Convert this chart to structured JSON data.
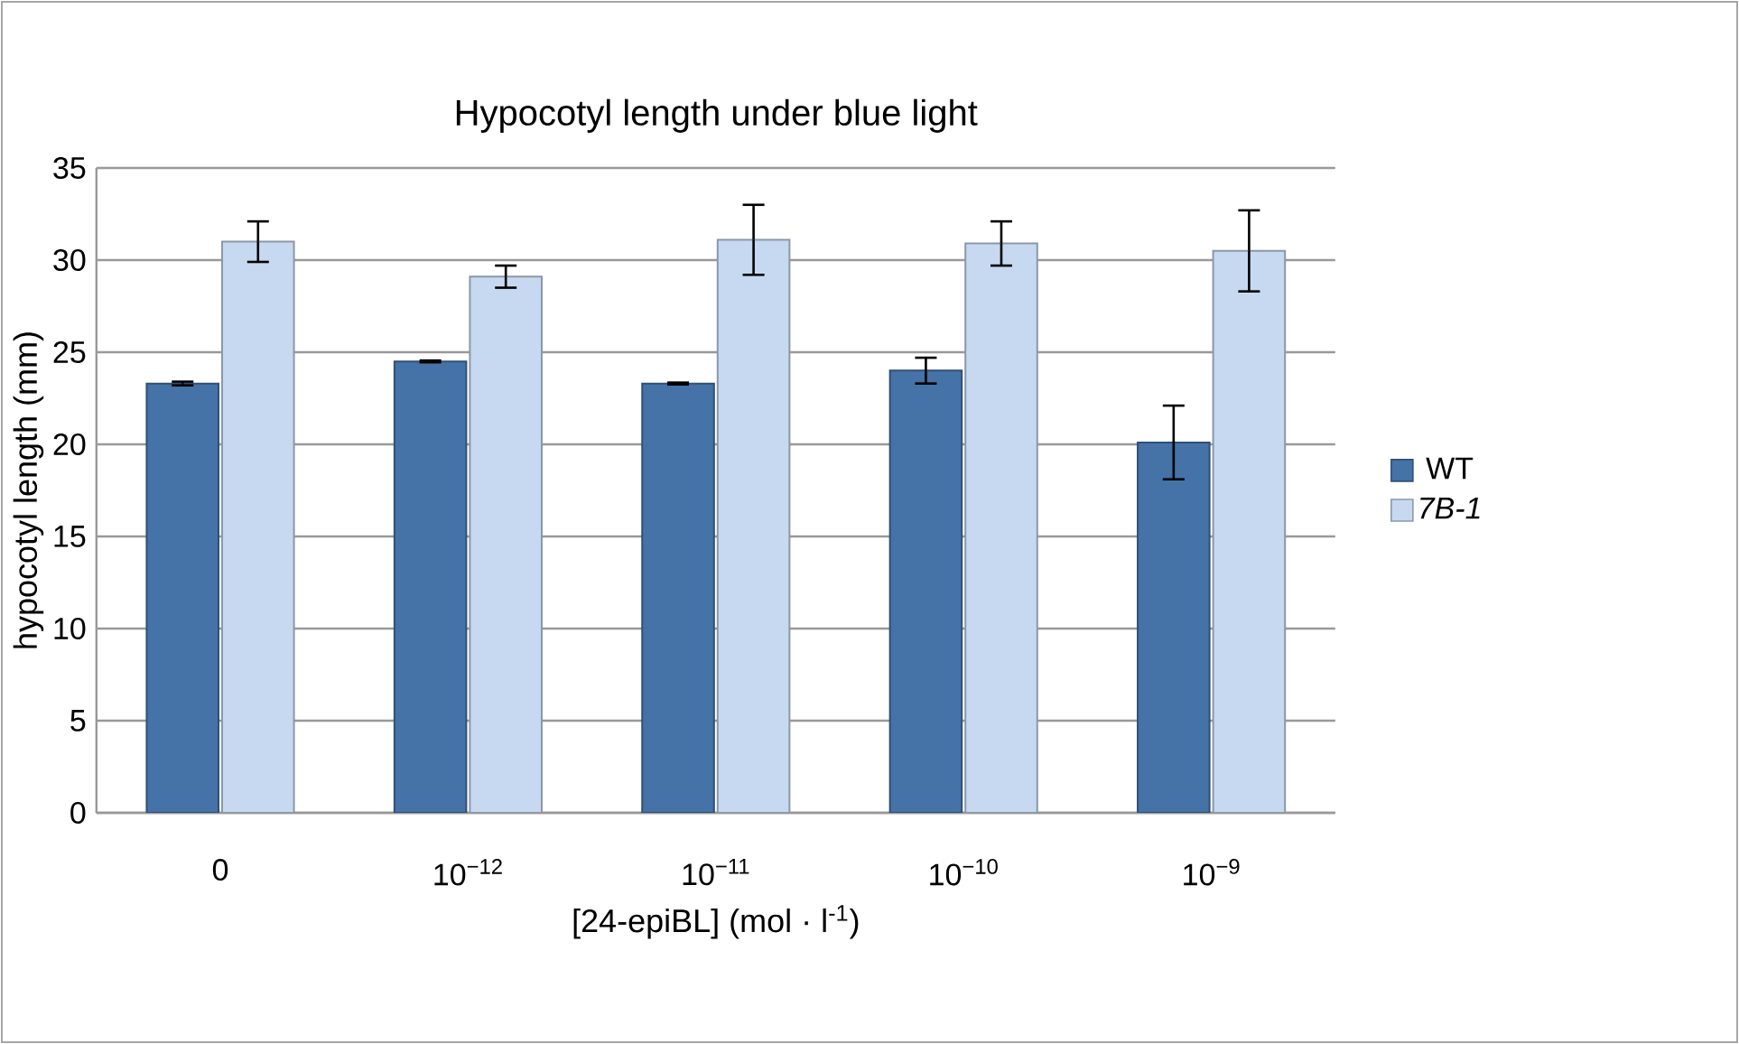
{
  "chart_data": {
    "type": "bar",
    "title": "Hypocotyl length under blue light",
    "xlabel": "[24-epiBL] (mol · l$^{-1}$)",
    "ylabel": "hypocotyl length (mm)",
    "categories": [
      "0",
      "10$^{−12}$",
      "10$^{−11}$",
      "10$^{−10}$",
      "10$^{−9}$"
    ],
    "series": [
      {
        "name": "WT",
        "color": "#4572a7",
        "values": [
          23.3,
          24.5,
          23.3,
          24.0,
          20.1
        ],
        "errors": [
          0.1,
          0.05,
          0.05,
          0.7,
          2.0
        ]
      },
      {
        "name": "*7B-1*",
        "color": "#c6d9f1",
        "values": [
          31.0,
          29.1,
          31.1,
          30.9,
          30.5
        ],
        "errors": [
          1.1,
          0.6,
          1.9,
          1.2,
          2.2
        ]
      }
    ],
    "ylim": [
      0,
      35
    ],
    "yticks": [
      0,
      5,
      10,
      15,
      20,
      25,
      30,
      35
    ],
    "grid": "y",
    "legend": "right"
  }
}
